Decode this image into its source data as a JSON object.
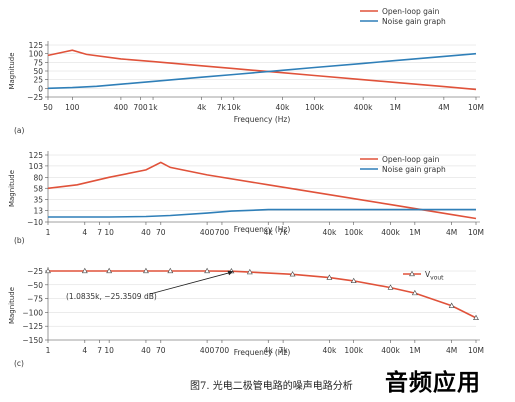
{
  "caption": "图7. 光电二极管电路的噪声电路分析",
  "watermark": "音频应用",
  "chart_data": [
    {
      "type": "line",
      "panel_label": "(a)",
      "xlabel": "Frequency (Hz)",
      "ylabel": "Magnitude",
      "xscale": "log",
      "xlim": [
        50,
        10000000
      ],
      "ylim": [
        -25,
        125
      ],
      "x_ticks": [
        50,
        100,
        400,
        700,
        1000,
        4000,
        7000,
        10000,
        40000,
        100000,
        400000,
        1000000,
        4000000,
        10000000
      ],
      "x_tick_labels": [
        "50",
        "100",
        "400",
        "700",
        "1k",
        "4k",
        "7k",
        "10k",
        "40k",
        "100k",
        "400k",
        "1M",
        "4M",
        "10M"
      ],
      "y_ticks": [
        125,
        100,
        75,
        50,
        25,
        0,
        -25
      ],
      "y_tick_labels": [
        "125",
        "100",
        "75",
        "50",
        "25",
        "0",
        "−25"
      ],
      "legend_position": "top-right",
      "series": [
        {
          "name": "Open-loop gain",
          "color": "#e0523a",
          "x": [
            50,
            80,
            100,
            150,
            400,
            1000,
            4000,
            10000,
            40000,
            100000,
            400000,
            1000000,
            4000000,
            10000000
          ],
          "y": [
            95,
            105,
            110,
            98,
            85,
            77,
            65,
            57,
            45,
            37,
            25,
            17,
            5,
            -3
          ]
        },
        {
          "name": "Noise gain graph",
          "color": "#2f7fb8",
          "x": [
            50,
            100,
            200,
            400,
            1000,
            4000,
            10000,
            40000,
            100000,
            400000,
            1000000,
            4000000,
            10000000
          ],
          "y": [
            0,
            2,
            6,
            12,
            20,
            32,
            40,
            52,
            60,
            72,
            80,
            92,
            100
          ]
        }
      ]
    },
    {
      "type": "line",
      "panel_label": "(b)",
      "xlabel": "Frequency (Hz)",
      "ylabel": "Magnitude",
      "xscale": "log",
      "xlim": [
        1,
        10000000
      ],
      "ylim": [
        -10,
        125
      ],
      "x_ticks": [
        1,
        4,
        7,
        10,
        40,
        70,
        400,
        700,
        4000,
        7000,
        40000,
        100000,
        400000,
        1000000,
        4000000,
        10000000
      ],
      "x_tick_labels": [
        "1",
        "4",
        "7",
        "10",
        "40",
        "70",
        "400",
        "700",
        "4k",
        "7k",
        "40k",
        "100k",
        "400k",
        "1M",
        "4M",
        "10M"
      ],
      "y_ticks": [
        125,
        103,
        80,
        58,
        35,
        13,
        -10
      ],
      "y_tick_labels": [
        "125",
        "103",
        "80",
        "58",
        "35",
        "13",
        "−10"
      ],
      "legend_position": "top-right",
      "series": [
        {
          "name": "Open-loop gain",
          "color": "#e0523a",
          "x": [
            1,
            3,
            10,
            40,
            70,
            100,
            400,
            4000,
            40000,
            400000,
            4000000,
            10000000
          ],
          "y": [
            58,
            65,
            80,
            95,
            110,
            100,
            85,
            65,
            45,
            25,
            5,
            -3
          ]
        },
        {
          "name": "Noise gain graph",
          "color": "#2f7fb8",
          "x": [
            1,
            10,
            40,
            100,
            400,
            1000,
            4000,
            10000,
            100000,
            1000000,
            10000000
          ],
          "y": [
            0,
            0,
            1,
            3,
            8,
            12,
            15,
            15,
            15,
            15,
            15
          ]
        }
      ]
    },
    {
      "type": "line",
      "panel_label": "(c)",
      "xlabel": "Frequency (Hz)",
      "ylabel": "Magnitude",
      "xscale": "log",
      "xlim": [
        1,
        10000000
      ],
      "ylim": [
        -150,
        -25
      ],
      "x_ticks": [
        1,
        4,
        7,
        10,
        40,
        70,
        400,
        700,
        4000,
        7000,
        40000,
        100000,
        400000,
        1000000,
        4000000,
        10000000
      ],
      "x_tick_labels": [
        "1",
        "4",
        "7",
        "10",
        "40",
        "70",
        "400",
        "700",
        "4k",
        "7k",
        "40k",
        "100k",
        "400k",
        "1M",
        "4M",
        "10M"
      ],
      "y_ticks": [
        -25,
        -50,
        -75,
        -100,
        -125,
        -150
      ],
      "y_tick_labels": [
        "−25",
        "−50",
        "−75",
        "−100",
        "−125",
        "−150"
      ],
      "legend_position": "top-right",
      "annotation": {
        "text": "(1.0835k, −25.3509 dB)",
        "x": 1083.5,
        "y": -25.3509
      },
      "series": [
        {
          "name": "V",
          "name_sub": "vout",
          "color": "#e0523a",
          "marker": "triangle",
          "x": [
            1,
            4,
            10,
            40,
            100,
            400,
            1000,
            2000,
            10000,
            40000,
            100000,
            400000,
            1000000,
            4000000,
            10000000
          ],
          "y": [
            -25,
            -25,
            -25,
            -25,
            -25,
            -25,
            -25.35,
            -27,
            -31,
            -37,
            -43,
            -55,
            -65,
            -88,
            -110
          ]
        }
      ]
    }
  ]
}
